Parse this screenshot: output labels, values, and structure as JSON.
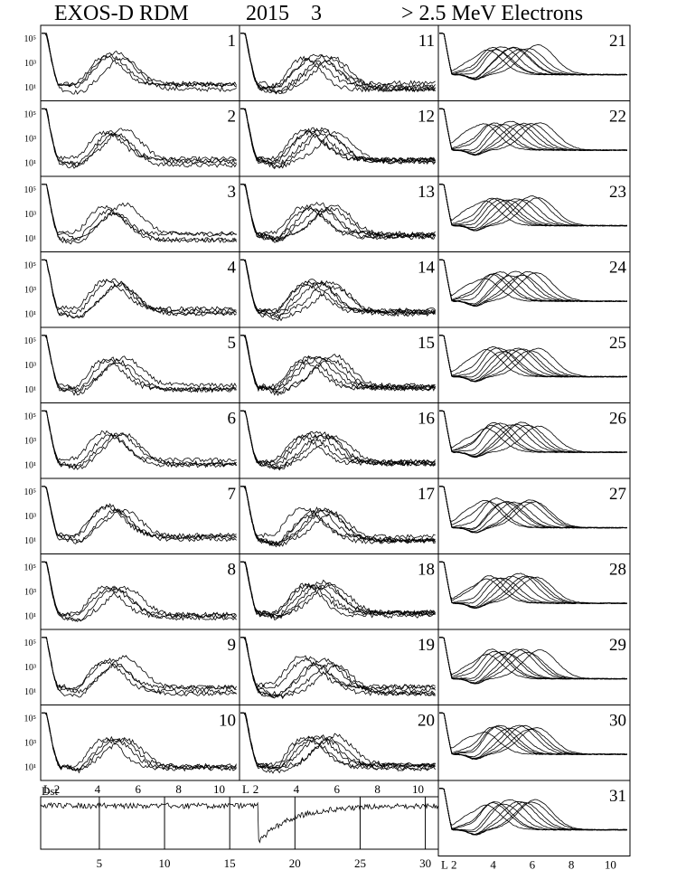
{
  "header": {
    "title": "EXOS-D RDM",
    "year": "2015",
    "month": "3",
    "energy": "> 2.5  MeV Electrons"
  },
  "chart_data": {
    "type": "line",
    "title": "EXOS-D RDM   2015   3   > 2.5 MeV Electrons",
    "panels": {
      "count": 31,
      "day_labels": [
        "1",
        "2",
        "3",
        "4",
        "5",
        "6",
        "7",
        "8",
        "9",
        "10",
        "11",
        "12",
        "13",
        "14",
        "15",
        "16",
        "17",
        "18",
        "19",
        "20",
        "21",
        "22",
        "23",
        "24",
        "25",
        "26",
        "27",
        "28",
        "29",
        "30",
        "31"
      ],
      "y_tick_labels": [
        "10⁵",
        "10³",
        "10¹"
      ],
      "x_axis_label": "L",
      "x_tick_labels": [
        "2",
        "4",
        "6",
        "8",
        "10"
      ],
      "x_range": [
        1.2,
        11
      ],
      "y_range_log10": [
        0.5,
        5.8
      ],
      "profile_shape": "electron flux vs L: peak near L≈1.3, slot minimum near L≈3, outer belt maximum near L≈4–5"
    },
    "dst_panel": {
      "label": "Dst",
      "x_tick_labels": [
        "5",
        "10",
        "15",
        "20",
        "25",
        "30"
      ],
      "x_range": [
        0.5,
        31
      ],
      "storm_minimum_day": 17.2
    }
  }
}
